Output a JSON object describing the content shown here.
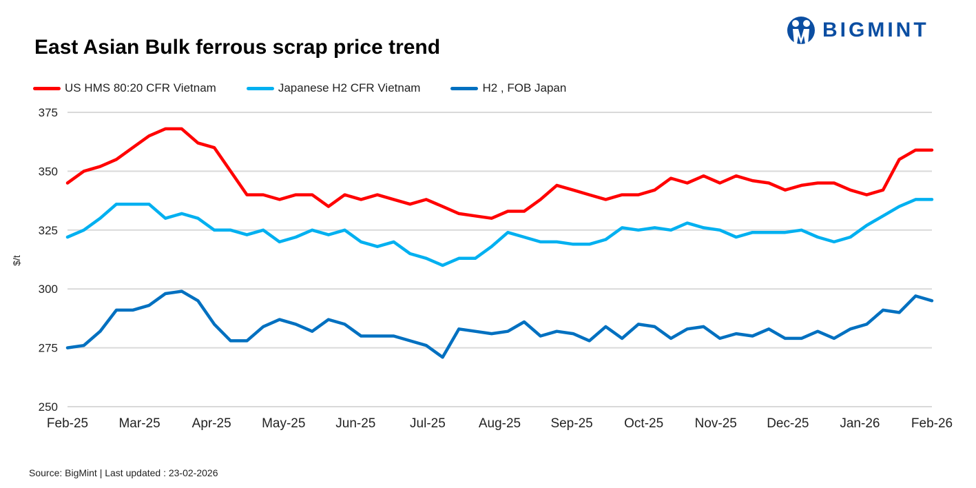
{
  "title": "East Asian Bulk ferrous scrap price trend",
  "logo": {
    "text": "BIGMINT",
    "color": "#0b4ea2"
  },
  "source": "Source: BigMint  | Last updated : 23-02-2026",
  "chart_data": {
    "type": "line",
    "title": "East Asian Bulk ferrous scrap price trend",
    "ylabel": "$/t",
    "xlabel": "",
    "ylim": [
      250,
      375
    ],
    "yticks": [
      250,
      275,
      300,
      325,
      350,
      375
    ],
    "x_tick_labels": [
      "Feb-25",
      "Mar-25",
      "Apr-25",
      "May-25",
      "Jun-25",
      "Jul-25",
      "Aug-25",
      "Sep-25",
      "Oct-25",
      "Nov-25",
      "Dec-25",
      "Jan-26",
      "Feb-26"
    ],
    "grid": true,
    "legend_placement": "top-left",
    "series": [
      {
        "name": "US HMS 80:20 CFR Vietnam",
        "color": "#ff0000",
        "values": [
          345,
          350,
          352,
          355,
          360,
          365,
          368,
          368,
          362,
          360,
          350,
          340,
          340,
          338,
          340,
          340,
          335,
          340,
          338,
          340,
          338,
          336,
          338,
          335,
          332,
          331,
          330,
          333,
          333,
          338,
          344,
          342,
          340,
          338,
          340,
          340,
          342,
          347,
          345,
          348,
          345,
          348,
          346,
          345,
          342,
          344,
          345,
          345,
          342,
          340,
          342,
          355,
          359,
          359
        ]
      },
      {
        "name": "Japanese H2 CFR Vietnam",
        "color": "#00b0f0",
        "values": [
          322,
          325,
          330,
          336,
          336,
          336,
          330,
          332,
          330,
          325,
          325,
          323,
          325,
          320,
          322,
          325,
          323,
          325,
          320,
          318,
          320,
          315,
          313,
          310,
          313,
          313,
          318,
          324,
          322,
          320,
          320,
          319,
          319,
          321,
          326,
          325,
          326,
          325,
          328,
          326,
          325,
          322,
          324,
          324,
          324,
          325,
          322,
          320,
          322,
          327,
          331,
          335,
          338,
          338
        ]
      },
      {
        "name": "H2 , FOB Japan",
        "color": "#0070c0",
        "values": [
          275,
          276,
          282,
          291,
          291,
          293,
          298,
          299,
          295,
          285,
          278,
          278,
          284,
          287,
          285,
          282,
          287,
          285,
          280,
          280,
          280,
          278,
          276,
          271,
          283,
          282,
          281,
          282,
          286,
          280,
          282,
          281,
          278,
          284,
          279,
          285,
          284,
          279,
          283,
          284,
          279,
          281,
          280,
          283,
          279,
          279,
          282,
          279,
          283,
          285,
          291,
          290,
          297,
          295
        ]
      }
    ]
  }
}
